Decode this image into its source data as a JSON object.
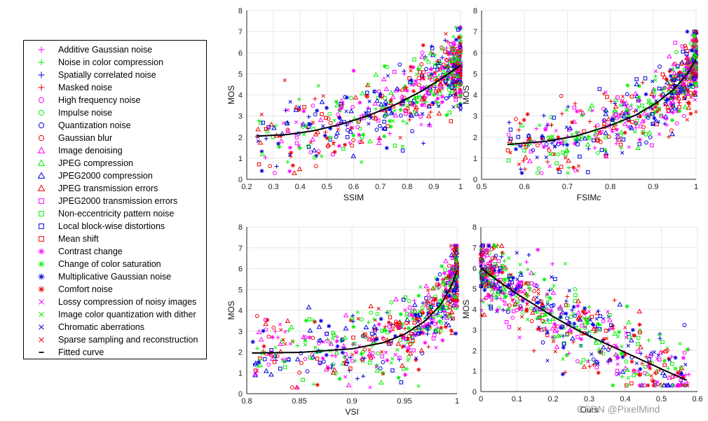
{
  "legend": {
    "entries": [
      {
        "label": "Additive Gaussian noise",
        "marker": "plus",
        "color": "#ff00ff"
      },
      {
        "label": "Noise in color compression",
        "marker": "plus",
        "color": "#00ee00"
      },
      {
        "label": "Spatially correlated noise",
        "marker": "plus",
        "color": "#0000dd"
      },
      {
        "label": "Masked noise",
        "marker": "plus",
        "color": "#ee0000"
      },
      {
        "label": "High frequency noise",
        "marker": "circle",
        "color": "#ff00ff"
      },
      {
        "label": "Impulse noise",
        "marker": "circle",
        "color": "#00ee00"
      },
      {
        "label": "Quantization noise",
        "marker": "circle",
        "color": "#0000dd"
      },
      {
        "label": "Gaussian blur",
        "marker": "circle",
        "color": "#ee0000"
      },
      {
        "label": "Image denoising",
        "marker": "triangle",
        "color": "#ff00ff"
      },
      {
        "label": "JPEG compression",
        "marker": "triangle",
        "color": "#00ee00"
      },
      {
        "label": "JPEG2000 compression",
        "marker": "triangle",
        "color": "#0000dd"
      },
      {
        "label": "JPEG transmission errors",
        "marker": "triangle",
        "color": "#ee0000"
      },
      {
        "label": "JPEG2000 transmission errors",
        "marker": "square",
        "color": "#ff00ff"
      },
      {
        "label": "Non-eccentricity pattern noise",
        "marker": "square",
        "color": "#00ee00"
      },
      {
        "label": "Local block-wise distortions",
        "marker": "square",
        "color": "#0000dd"
      },
      {
        "label": "Mean shift",
        "marker": "square",
        "color": "#ee0000"
      },
      {
        "label": "Contrast change",
        "marker": "asterisk",
        "color": "#ff00ff"
      },
      {
        "label": "Change of color saturation",
        "marker": "asterisk",
        "color": "#00ee00"
      },
      {
        "label": "Multiplicative Gaussian noise",
        "marker": "asterisk",
        "color": "#0000dd"
      },
      {
        "label": "Comfort noise",
        "marker": "asterisk",
        "color": "#ee0000"
      },
      {
        "label": "Lossy compression of noisy images",
        "marker": "cross",
        "color": "#ff00ff"
      },
      {
        "label": "Image color quantization with dither",
        "marker": "cross",
        "color": "#00ee00"
      },
      {
        "label": "Chromatic aberrations",
        "marker": "cross",
        "color": "#0000dd"
      },
      {
        "label": "Sparse sampling and reconstruction",
        "marker": "cross",
        "color": "#ee0000"
      },
      {
        "label": "Fitted curve",
        "marker": "line",
        "color": "#000000"
      }
    ]
  },
  "chart_data": [
    {
      "type": "scatter",
      "xlabel": "SSIM",
      "ylabel": "MOS",
      "xlim": [
        0.2,
        1
      ],
      "ylim": [
        0,
        8
      ],
      "xticks": [
        "0.2",
        "0.3",
        "0.4",
        "0.5",
        "0.6",
        "0.7",
        "0.8",
        "0.9",
        "1"
      ],
      "yticks": [
        "0",
        "1",
        "2",
        "3",
        "4",
        "5",
        "6",
        "7",
        "8"
      ],
      "trend": "increasing-convex",
      "fitted_curve": {
        "x": [
          0.24,
          0.35,
          0.45,
          0.55,
          0.65,
          0.75,
          0.85,
          0.92,
          1.0
        ],
        "y": [
          2.05,
          2.12,
          2.3,
          2.6,
          3.0,
          3.5,
          4.15,
          4.7,
          5.4
        ]
      },
      "point_cloud": {
        "x_min": 0.24,
        "x_max": 1.0,
        "y_min": 0.3,
        "y_max": 7.2
      }
    },
    {
      "type": "scatter",
      "xlabel": "FSIM",
      "xlabel_suffix": "c",
      "ylabel": "MOS",
      "xlim": [
        0.5,
        1
      ],
      "ylim": [
        0,
        8
      ],
      "xticks": [
        "0.5",
        "0.6",
        "0.7",
        "0.8",
        "0.9",
        "1"
      ],
      "yticks": [
        "0",
        "1",
        "2",
        "3",
        "4",
        "5",
        "6",
        "7",
        "8"
      ],
      "trend": "increasing-convex",
      "fitted_curve": {
        "x": [
          0.56,
          0.65,
          0.72,
          0.8,
          0.86,
          0.91,
          0.95,
          0.98,
          1.0
        ],
        "y": [
          1.65,
          1.8,
          2.05,
          2.55,
          3.05,
          3.65,
          4.3,
          5.0,
          5.7
        ]
      },
      "point_cloud": {
        "x_min": 0.56,
        "x_max": 1.0,
        "y_min": 0.3,
        "y_max": 7.0
      }
    },
    {
      "type": "scatter",
      "xlabel": "VSI",
      "ylabel": "MOS",
      "xlim": [
        0.8,
        1
      ],
      "ylim": [
        0,
        8
      ],
      "xticks": [
        "0.8",
        "0.85",
        "0.9",
        "0.95",
        "1"
      ],
      "yticks": [
        "0",
        "1",
        "2",
        "3",
        "4",
        "5",
        "6",
        "7",
        "8"
      ],
      "trend": "increasing-convex",
      "fitted_curve": {
        "x": [
          0.805,
          0.85,
          0.9,
          0.93,
          0.95,
          0.97,
          0.985,
          0.995,
          1.0
        ],
        "y": [
          1.95,
          1.98,
          2.15,
          2.45,
          2.85,
          3.5,
          4.3,
          5.2,
          5.9
        ]
      },
      "point_cloud": {
        "x_min": 0.805,
        "x_max": 1.0,
        "y_min": 0.3,
        "y_max": 7.1
      }
    },
    {
      "type": "scatter",
      "xlabel": "Ours",
      "ylabel": "MOS",
      "xlim": [
        0,
        0.6
      ],
      "ylim": [
        0,
        8
      ],
      "xticks": [
        "0",
        "0.1",
        "0.2",
        "0.3",
        "0.4",
        "0.5",
        "0.6"
      ],
      "yticks": [
        "0",
        "1",
        "2",
        "3",
        "4",
        "5",
        "6",
        "7",
        "8"
      ],
      "trend": "decreasing",
      "fitted_curve": {
        "x": [
          0.0,
          0.05,
          0.1,
          0.15,
          0.2,
          0.25,
          0.3,
          0.35,
          0.4,
          0.45,
          0.5,
          0.57
        ],
        "y": [
          6.0,
          5.35,
          4.75,
          4.2,
          3.65,
          3.15,
          2.7,
          2.3,
          1.9,
          1.5,
          1.1,
          0.55
        ]
      },
      "point_cloud": {
        "x_min": 0.0,
        "x_max": 0.58,
        "y_min": 0.3,
        "y_max": 7.1
      }
    }
  ],
  "watermark": "CSDN @PixelMind"
}
